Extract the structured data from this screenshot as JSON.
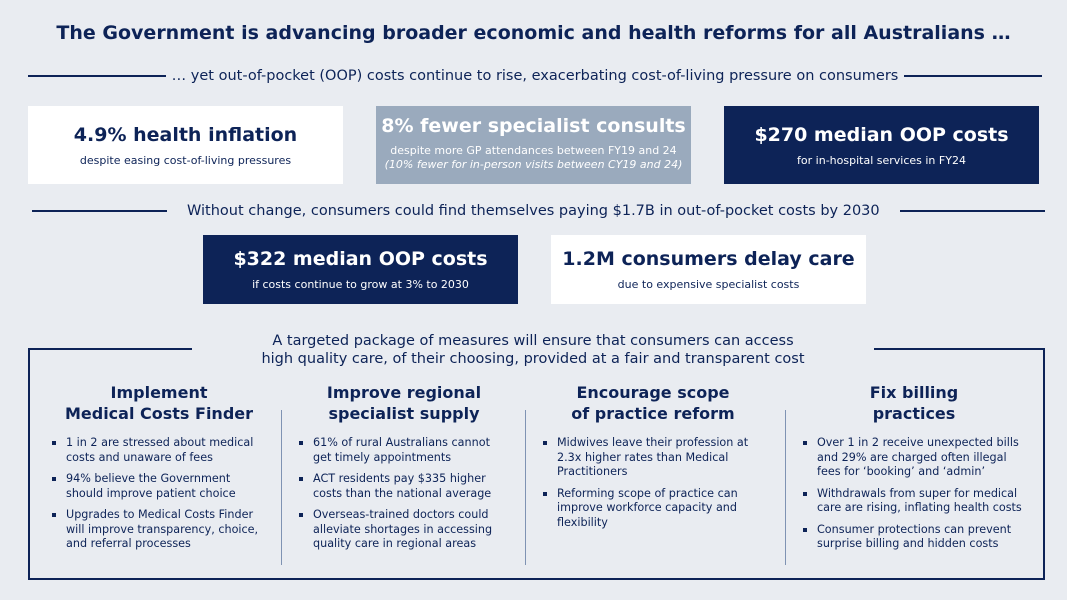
{
  "title": "The Government is advancing broader economic and health reforms for all Australians …",
  "subtitle": "… yet out-of-pocket (OOP) costs continue to rise, exacerbating cost-of-living pressure on consumers",
  "stats_row1": [
    {
      "big": "4.9% health inflation",
      "small": "despite easing cost-of-living pressures"
    },
    {
      "big": "8% fewer specialist consults",
      "small": "despite more GP attendances between FY19 and 24",
      "note": "(10% fewer for in-person visits between CY19 and 24)"
    },
    {
      "big": "$270 median OOP costs",
      "small": "for in-hospital services in FY24"
    }
  ],
  "projection": "Without change, consumers could find themselves paying $1.7B in out-of-pocket costs by 2030",
  "stats_row2": [
    {
      "big": "$322 median OOP costs",
      "small": "if costs continue to grow at 3% to 2030"
    },
    {
      "big": "1.2M consumers delay care",
      "small": "due to expensive specialist costs"
    }
  ],
  "package": {
    "line1": "A targeted package of measures will ensure that consumers can access",
    "line2": "high quality care, of their choosing, provided at a fair and transparent cost"
  },
  "columns": [
    {
      "head1": "Implement",
      "head2": "Medical Costs Finder",
      "bullets": [
        "1 in 2 are stressed about medical costs and unaware of fees",
        "94% believe the Government should improve patient choice",
        "Upgrades to Medical Costs Finder will improve transparency, choice, and referral processes"
      ]
    },
    {
      "head1": "Improve regional",
      "head2": "specialist supply",
      "bullets": [
        "61% of rural Australians cannot get timely appointments",
        "ACT residents pay $335 higher costs than the national average",
        "Overseas-trained doctors could alleviate shortages in accessing quality care in regional areas"
      ]
    },
    {
      "head1": "Encourage scope",
      "head2": "of practice reform",
      "bullets": [
        "Midwives leave their profession at 2.3x higher rates than Medical Practitioners",
        "Reforming scope of practice can improve workforce capacity and flexibility"
      ]
    },
    {
      "head1": "Fix billing",
      "head2": "practices",
      "bullets": [
        "Over 1 in 2 receive unexpected bills and 29% are charged often illegal fees for ‘booking’ and ‘admin’",
        "Withdrawals from super for medical care are rising, inflating health costs",
        "Consumer protections can prevent surprise billing and hidden costs"
      ]
    }
  ],
  "colors": {
    "navy": "#0d2357",
    "grey_box": "#9aaabd",
    "background": "#e9ecf1"
  }
}
